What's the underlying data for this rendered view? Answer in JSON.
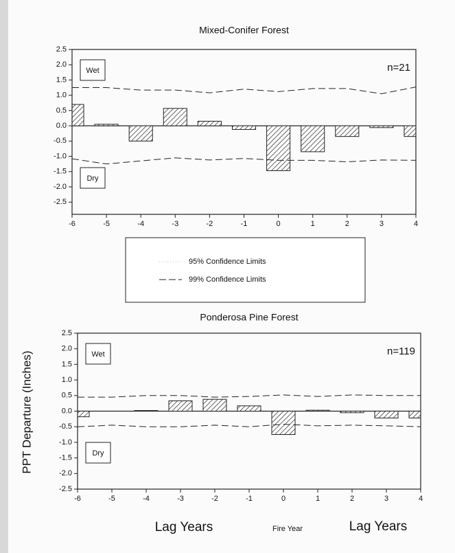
{
  "legend": [
    "95% Confidence Limits",
    "99% Confidence Limits"
  ],
  "ylabel": "PPT Departure (Inches)",
  "xlabels": [
    "Lag Years",
    "Fire Year",
    "Lag Years"
  ],
  "chart_data": [
    {
      "type": "bar",
      "title": "Mixed-Conifer Forest",
      "labels": {
        "wet": "Wet",
        "dry": "Dry",
        "n": "n=21"
      },
      "x": [
        -6,
        -5,
        -4,
        -3,
        -2,
        -1,
        0,
        1,
        2,
        3,
        4
      ],
      "values": [
        0.7,
        0.05,
        -0.5,
        0.57,
        0.15,
        -0.12,
        -1.47,
        -0.85,
        -0.35,
        -0.06,
        -0.35
      ],
      "upper99": [
        1.25,
        1.25,
        1.17,
        1.17,
        1.08,
        1.2,
        1.12,
        1.22,
        1.22,
        1.05,
        1.27
      ],
      "lower99": [
        -1.08,
        -1.25,
        -1.15,
        -1.05,
        -1.12,
        -1.07,
        -1.13,
        -1.13,
        -1.18,
        -1.12,
        -1.13
      ],
      "xlim": [
        -6,
        4
      ],
      "xticks": [
        -6,
        -5,
        -4,
        -3,
        -2,
        -1,
        0,
        1,
        2,
        3,
        4
      ],
      "ylim": [
        -2.9,
        2.5
      ],
      "yticks": [
        2.5,
        {
          "value": 2,
          "label": "2.0"
        },
        1.5,
        {
          "value": 1,
          "label": "1.0"
        },
        0.5,
        {
          "value": 0,
          "label": "0.0"
        },
        -0.5,
        {
          "value": -1,
          "label": "-1.0"
        },
        -1.5,
        {
          "value": -2,
          "label": "-2.0"
        },
        -2.5
      ]
    },
    {
      "type": "bar",
      "title": "Ponderosa Pine Forest",
      "labels": {
        "wet": "Wet",
        "dry": "Dry",
        "n": "n=119"
      },
      "x": [
        -6,
        -5,
        -4,
        -3,
        -2,
        -1,
        0,
        1,
        2,
        3,
        4
      ],
      "values": [
        -0.18,
        0,
        0.02,
        0.33,
        0.38,
        0.17,
        -0.75,
        0.03,
        -0.05,
        -0.22,
        -0.22
      ],
      "upper99": [
        0.45,
        0.45,
        0.5,
        0.5,
        0.45,
        0.47,
        0.52,
        0.47,
        0.52,
        0.5,
        0.5
      ],
      "lower99": [
        -0.5,
        -0.45,
        -0.5,
        -0.5,
        -0.45,
        -0.5,
        -0.42,
        -0.47,
        -0.45,
        -0.47,
        -0.5
      ],
      "xlim": [
        -6,
        4
      ],
      "xticks": [
        -6,
        -5,
        -4,
        -3,
        -2,
        -1,
        0,
        1,
        2,
        3,
        4
      ],
      "ylim": [
        -2.5,
        2.5
      ],
      "yticks": [
        2.5,
        {
          "value": 2,
          "label": "2.0"
        },
        1.5,
        {
          "value": 1,
          "label": "1.0"
        },
        0.5,
        {
          "value": 0,
          "label": "0.0"
        },
        -0.5,
        {
          "value": -1,
          "label": "-1.0"
        },
        -1.5,
        {
          "value": -2,
          "label": "-2.0"
        },
        -2.5
      ]
    }
  ]
}
